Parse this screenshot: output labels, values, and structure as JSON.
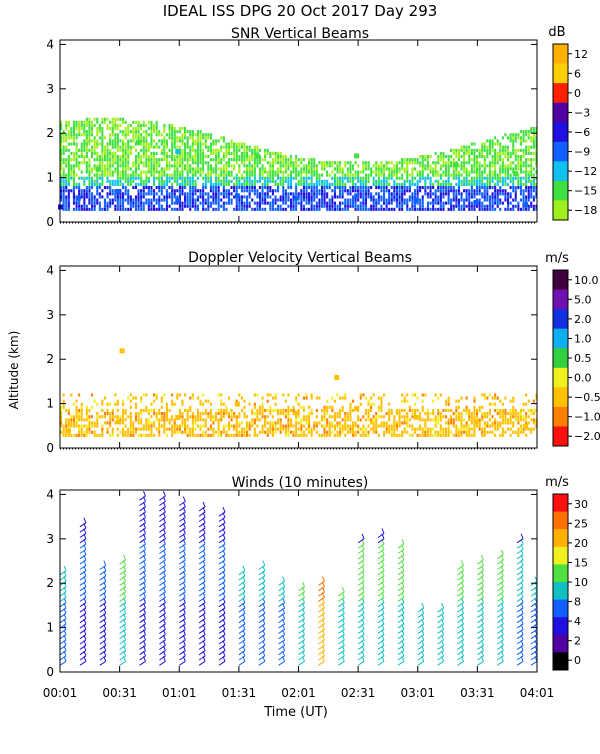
{
  "figure": {
    "title": "IDEAL ISS DPG  20 Oct 2017 Day 293",
    "shared_ylabel": "Altitude (km)",
    "xlabel": "Time (UT)",
    "x_ticks": [
      "00:01",
      "00:31",
      "01:01",
      "01:31",
      "02:01",
      "02:31",
      "03:01",
      "03:31",
      "04:01"
    ]
  },
  "chart_data": [
    {
      "type": "heatmap",
      "title": "SNR Vertical Beams",
      "ylabel": "Altitude (km)",
      "ylim": [
        0,
        4.1
      ],
      "y_ticks": [
        "0",
        "1",
        "2",
        "3",
        "4"
      ],
      "xlim_minutes_ut": [
        1,
        241
      ],
      "colorbar": {
        "unit": "dB",
        "tick_labels": [
          "12",
          "6",
          "0",
          "−3",
          "−6",
          "−9",
          "−12",
          "−15",
          "−18"
        ],
        "colors": [
          "#ffb000",
          "#ffd000",
          "#ff2000",
          "#5000a0",
          "#2010e0",
          "#1060ff",
          "#10c0f0",
          "#40e040",
          "#a0f020"
        ]
      },
      "cell_values": [
        {
          "x": 1,
          "y": 0.35,
          "v": -6
        },
        {
          "x": 10,
          "y": 0.55,
          "v": -9
        },
        {
          "x": 30,
          "y": 0.7,
          "v": -9
        },
        {
          "x": 60,
          "y": 0.5,
          "v": -9
        },
        {
          "x": 90,
          "y": 0.6,
          "v": -9
        },
        {
          "x": 120,
          "y": 0.55,
          "v": -9
        },
        {
          "x": 150,
          "y": 0.6,
          "v": -9
        },
        {
          "x": 180,
          "y": 0.5,
          "v": -9
        },
        {
          "x": 210,
          "y": 0.45,
          "v": -9
        },
        {
          "x": 235,
          "y": 0.4,
          "v": -9
        },
        {
          "x": 20,
          "y": 1.2,
          "v": -15
        },
        {
          "x": 40,
          "y": 1.8,
          "v": -15
        },
        {
          "x": 60,
          "y": 1.6,
          "v": -12
        },
        {
          "x": 100,
          "y": 1.5,
          "v": -15
        },
        {
          "x": 150,
          "y": 1.5,
          "v": -15
        },
        {
          "x": 200,
          "y": 1.3,
          "v": -15
        },
        {
          "x": 230,
          "y": 1.1,
          "v": -15
        }
      ]
    },
    {
      "type": "heatmap",
      "title": "Doppler Velocity Vertical Beams",
      "ylabel": "Altitude (km)",
      "ylim": [
        0,
        4.1
      ],
      "y_ticks": [
        "0",
        "1",
        "2",
        "3",
        "4"
      ],
      "xlim_minutes_ut": [
        1,
        241
      ],
      "colorbar": {
        "unit": "m/s",
        "tick_labels": [
          "10.0",
          "5.0",
          "2.0",
          "1.0",
          "0.5",
          "0.0",
          "−0.5",
          "−1.0",
          "−2.0"
        ],
        "colors": [
          "#400040",
          "#7010b0",
          "#1030e0",
          "#10b0f0",
          "#30d040",
          "#f0f020",
          "#ffc000",
          "#ff8000",
          "#ff1010"
        ]
      },
      "cell_values": [
        {
          "x": 5,
          "y": 0.4,
          "v": -0.5
        },
        {
          "x": 30,
          "y": 0.6,
          "v": -0.5
        },
        {
          "x": 60,
          "y": 0.7,
          "v": -0.5
        },
        {
          "x": 90,
          "y": 1.0,
          "v": -0.5
        },
        {
          "x": 120,
          "y": 0.8,
          "v": -0.5
        },
        {
          "x": 150,
          "y": 0.9,
          "v": -0.5
        },
        {
          "x": 180,
          "y": 0.7,
          "v": -0.5
        },
        {
          "x": 210,
          "y": 0.6,
          "v": -0.5
        },
        {
          "x": 235,
          "y": 0.5,
          "v": -0.5
        },
        {
          "x": 32,
          "y": 2.2,
          "v": -0.5
        },
        {
          "x": 140,
          "y": 1.6,
          "v": -0.5
        }
      ]
    },
    {
      "type": "wind-barbs",
      "title": "Winds (10 minutes)",
      "ylabel": "Altitude (km)",
      "ylim": [
        0,
        4.1
      ],
      "y_ticks": [
        "0",
        "1",
        "2",
        "3",
        "4"
      ],
      "xlim_minutes_ut": [
        1,
        241
      ],
      "colorbar": {
        "unit": "m/s",
        "tick_labels": [
          "30",
          "25",
          "20",
          "15",
          "10",
          "8",
          "4",
          "2",
          "0"
        ],
        "colors": [
          "#ff1010",
          "#ff7000",
          "#ffb000",
          "#f0f020",
          "#50e040",
          "#10c0c0",
          "#1060ff",
          "#2010e0",
          "#5000a0",
          "#000000"
        ]
      },
      "profiles": [
        {
          "x": 1,
          "y_top": 2.2,
          "speed": 8
        },
        {
          "x": 11,
          "y_top": 3.3,
          "speed": 4
        },
        {
          "x": 21,
          "y_top": 2.4,
          "speed": 4
        },
        {
          "x": 31,
          "y_top": 2.5,
          "speed": 10
        },
        {
          "x": 41,
          "y_top": 3.9,
          "speed": 4
        },
        {
          "x": 51,
          "y_top": 3.9,
          "speed": 4
        },
        {
          "x": 61,
          "y_top": 3.8,
          "speed": 4
        },
        {
          "x": 71,
          "y_top": 3.7,
          "speed": 4
        },
        {
          "x": 81,
          "y_top": 3.6,
          "speed": 4
        },
        {
          "x": 91,
          "y_top": 2.2,
          "speed": 8
        },
        {
          "x": 101,
          "y_top": 2.4,
          "speed": 8
        },
        {
          "x": 111,
          "y_top": 2.0,
          "speed": 8
        },
        {
          "x": 121,
          "y_top": 1.9,
          "speed": 10
        },
        {
          "x": 131,
          "y_top": 2.0,
          "speed": 25
        },
        {
          "x": 141,
          "y_top": 1.8,
          "speed": 10
        },
        {
          "x": 151,
          "y_top": 3.0,
          "speed": 12
        },
        {
          "x": 161,
          "y_top": 3.1,
          "speed": 12
        },
        {
          "x": 171,
          "y_top": 2.8,
          "speed": 12
        },
        {
          "x": 181,
          "y_top": 1.4,
          "speed": 12
        },
        {
          "x": 191,
          "y_top": 1.4,
          "speed": 12
        },
        {
          "x": 201,
          "y_top": 2.4,
          "speed": 12
        },
        {
          "x": 211,
          "y_top": 2.5,
          "speed": 12
        },
        {
          "x": 221,
          "y_top": 2.6,
          "speed": 10
        },
        {
          "x": 231,
          "y_top": 3.0,
          "speed": 8
        },
        {
          "x": 238,
          "y_top": 2.0,
          "speed": 8
        }
      ]
    }
  ]
}
